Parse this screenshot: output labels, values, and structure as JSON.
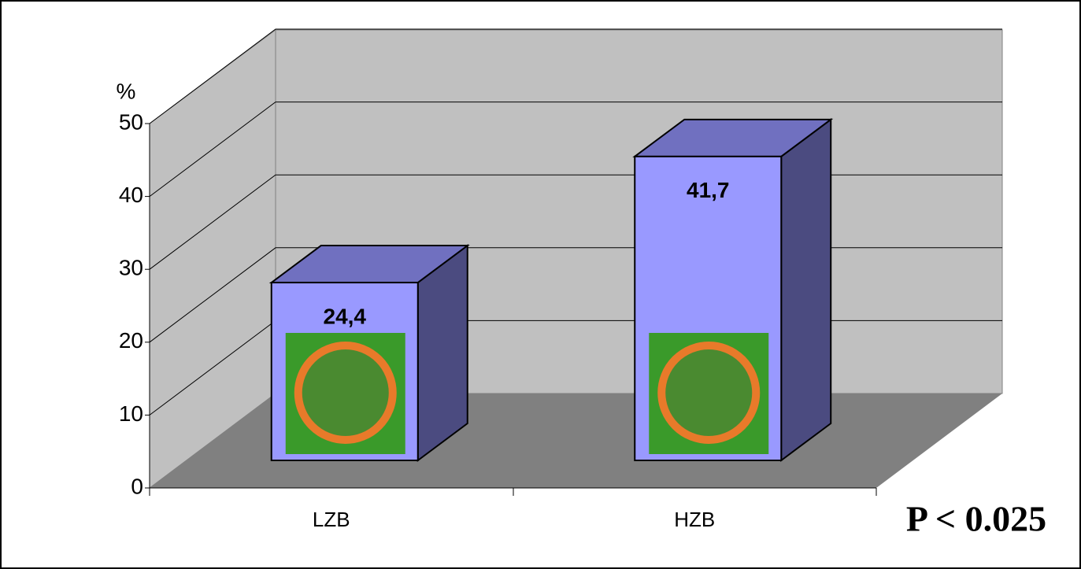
{
  "chart_data": {
    "type": "bar3d",
    "ylabel": "%",
    "categories": [
      "LZB",
      "HZB"
    ],
    "values": [
      24.4,
      41.7
    ],
    "value_labels": [
      "24,4",
      "41,7"
    ],
    "color": "#9999ff",
    "ylim": [
      0,
      50
    ],
    "yticks": [
      0,
      10,
      20,
      30,
      40,
      50
    ],
    "grid": true,
    "annotation": "P < 0.025"
  }
}
